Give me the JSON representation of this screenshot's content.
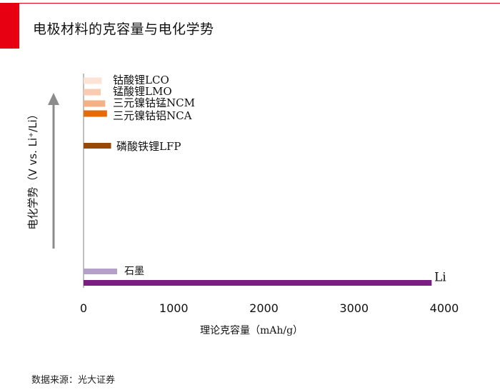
{
  "header": {
    "title": "电极材料的克容量与电化学势",
    "accent_color": "#e60012"
  },
  "footer": {
    "source": "数据来源：光大证券"
  },
  "chart_data": {
    "type": "bar",
    "orientation": "horizontal",
    "title": "电极材料的克容量与电化学势",
    "xlabel": "理论克容量（mAh/g）",
    "ylabel": "电化学势（V vs. Li⁺/Li）",
    "y_axis_arrow": "up",
    "xlim": [
      0,
      4000
    ],
    "xticks": [
      0,
      1000,
      2000,
      3000,
      4000
    ],
    "grid": false,
    "legend": "none",
    "bars": [
      {
        "label": "钴酸锂LCO",
        "start": 0,
        "end": 200,
        "color": "#fbe3d6"
      },
      {
        "label": "锰酸锂LMO",
        "start": 0,
        "end": 190,
        "color": "#f9cbb0"
      },
      {
        "label": "三元镍钴锰NCM",
        "start": 0,
        "end": 240,
        "color": "#f4b183"
      },
      {
        "label": "三元镍钴铝NCA",
        "start": 0,
        "end": 260,
        "color": "#e36c09"
      },
      {
        "label": "磷酸铁锂LFP",
        "start": 0,
        "end": 305,
        "color": "#984807"
      },
      {
        "label": "石墨",
        "start": 0,
        "end": 372,
        "color": "#b4a0c8"
      },
      {
        "label": "Li",
        "start": 0,
        "end": 3860,
        "color": "#7b1e82"
      }
    ]
  }
}
